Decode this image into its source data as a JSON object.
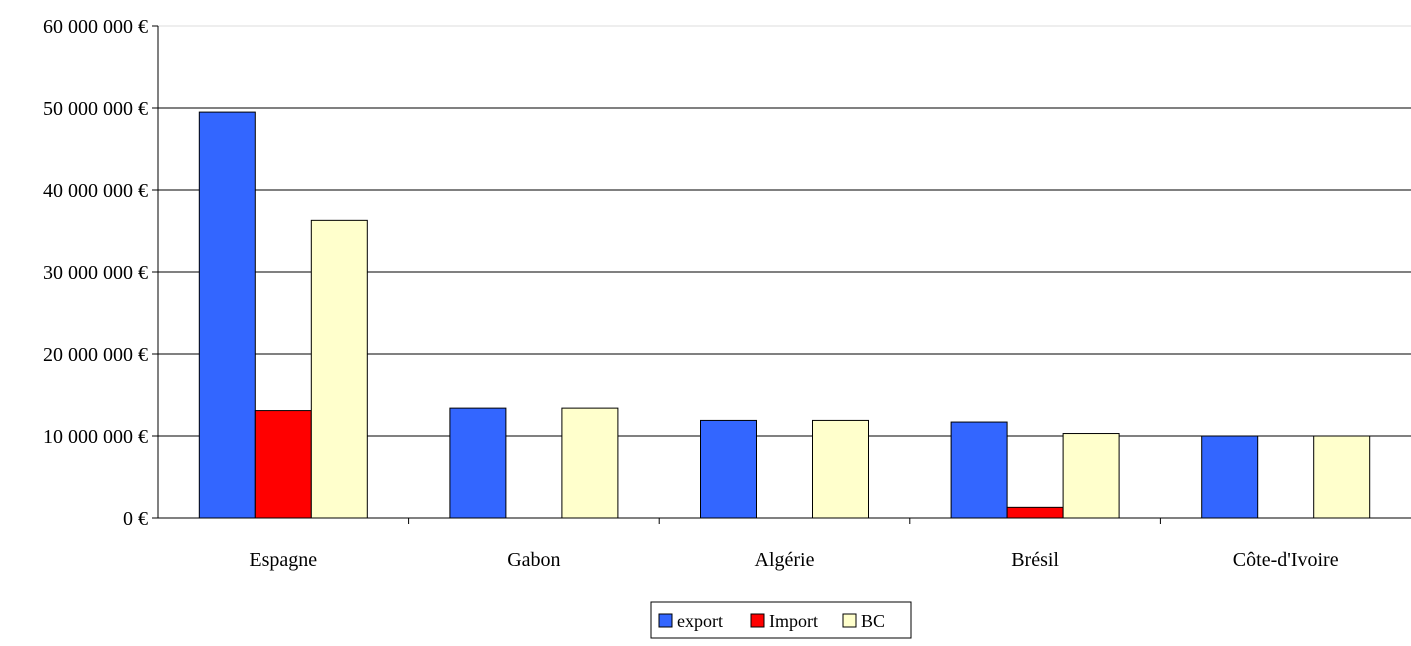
{
  "chart_data": {
    "type": "bar",
    "title": "",
    "xlabel": "",
    "ylabel": "",
    "categories": [
      "Espagne",
      "Gabon",
      "Algérie",
      "Brésil",
      "Côte-d'Ivoire"
    ],
    "series": [
      {
        "name": "export",
        "color": "#3366ff",
        "values": [
          49500000,
          13400000,
          11900000,
          11700000,
          10000000
        ]
      },
      {
        "name": "Import",
        "color": "#ff0000",
        "values": [
          13100000,
          0,
          0,
          1300000,
          0
        ]
      },
      {
        "name": "BC",
        "color": "#ffffcc",
        "values": [
          36300000,
          13400000,
          11900000,
          10300000,
          10000000
        ]
      }
    ],
    "ylim": [
      0,
      60000000
    ],
    "yticks": [
      0,
      10000000,
      20000000,
      30000000,
      40000000,
      50000000,
      60000000
    ],
    "ytick_labels": [
      "0 €",
      "10 000 000 €",
      "20 000 000 €",
      "30 000 000 €",
      "40 000 000 €",
      "50 000 000 €",
      "60 000 000 €"
    ],
    "grid": true,
    "legend_position": "bottom-center"
  }
}
